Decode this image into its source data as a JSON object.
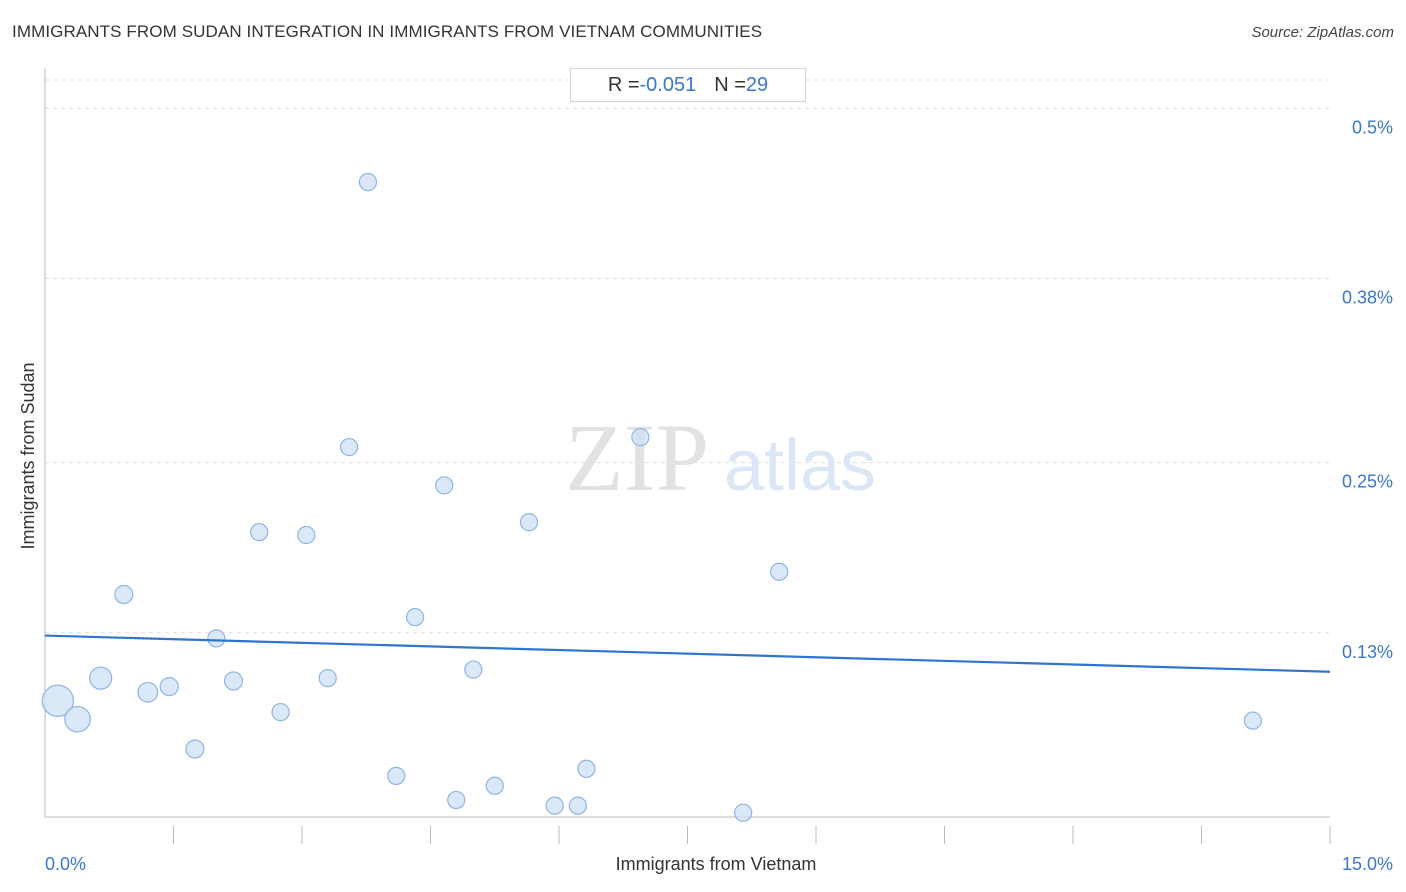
{
  "header": {
    "title": "IMMIGRANTS FROM SUDAN INTEGRATION IN IMMIGRANTS FROM VIETNAM COMMUNITIES",
    "source": "Source: ZipAtlas.com"
  },
  "stats": {
    "r_label": "R = ",
    "r_value": "-0.051",
    "n_label": "N = ",
    "n_value": "29"
  },
  "watermark": {
    "zip": "ZIP",
    "atlas": "atlas"
  },
  "colors": {
    "accent": "#3a78c9",
    "trend": "#2f74cf",
    "point_fill": "#cfe0f6",
    "point_stroke": "#8fb4e6",
    "grid": "#dddddd"
  },
  "chart_data": {
    "type": "scatter",
    "xlabel": "Immigrants from Vietnam",
    "ylabel": "Immigrants from Sudan",
    "xlim": [
      0,
      15
    ],
    "ylim": [
      0,
      0.52
    ],
    "x_tick_labels": [
      {
        "value": 0,
        "label": "0.0%"
      },
      {
        "value": 15,
        "label": "15.0%"
      }
    ],
    "y_tick_labels": [
      {
        "value": 0.5,
        "label": "0.5%"
      },
      {
        "value": 0.38,
        "label": "0.38%"
      },
      {
        "value": 0.25,
        "label": "0.25%"
      },
      {
        "value": 0.13,
        "label": "0.13%"
      }
    ],
    "grid": true,
    "trend": {
      "x": [
        0,
        15
      ],
      "y": [
        0.128,
        0.1025
      ]
    },
    "points": [
      {
        "x": 0.15,
        "y": 0.082,
        "size": 3
      },
      {
        "x": 0.38,
        "y": 0.069,
        "size": 2
      },
      {
        "x": 0.65,
        "y": 0.098,
        "size": 1.5
      },
      {
        "x": 0.92,
        "y": 0.157,
        "size": 1
      },
      {
        "x": 1.2,
        "y": 0.088,
        "size": 1.2
      },
      {
        "x": 1.45,
        "y": 0.092,
        "size": 1
      },
      {
        "x": 1.75,
        "y": 0.048,
        "size": 1
      },
      {
        "x": 2.0,
        "y": 0.126,
        "size": 0.9
      },
      {
        "x": 2.2,
        "y": 0.096,
        "size": 1
      },
      {
        "x": 2.5,
        "y": 0.201,
        "size": 0.9
      },
      {
        "x": 2.75,
        "y": 0.074,
        "size": 0.9
      },
      {
        "x": 3.05,
        "y": 0.199,
        "size": 0.9
      },
      {
        "x": 3.3,
        "y": 0.098,
        "size": 0.9
      },
      {
        "x": 3.55,
        "y": 0.261,
        "size": 0.9
      },
      {
        "x": 3.77,
        "y": 0.448,
        "size": 0.9
      },
      {
        "x": 4.1,
        "y": 0.029,
        "size": 0.9
      },
      {
        "x": 4.32,
        "y": 0.141,
        "size": 0.9
      },
      {
        "x": 4.66,
        "y": 0.234,
        "size": 0.9
      },
      {
        "x": 4.8,
        "y": 0.012,
        "size": 0.9
      },
      {
        "x": 5.0,
        "y": 0.104,
        "size": 0.9
      },
      {
        "x": 5.25,
        "y": 0.022,
        "size": 0.9
      },
      {
        "x": 5.65,
        "y": 0.208,
        "size": 0.9
      },
      {
        "x": 5.95,
        "y": 0.008,
        "size": 0.9
      },
      {
        "x": 6.22,
        "y": 0.008,
        "size": 0.9
      },
      {
        "x": 6.32,
        "y": 0.034,
        "size": 0.9
      },
      {
        "x": 6.95,
        "y": 0.268,
        "size": 0.9
      },
      {
        "x": 8.15,
        "y": 0.003,
        "size": 0.9
      },
      {
        "x": 8.57,
        "y": 0.173,
        "size": 0.9
      },
      {
        "x": 14.1,
        "y": 0.068,
        "size": 0.9
      }
    ]
  }
}
